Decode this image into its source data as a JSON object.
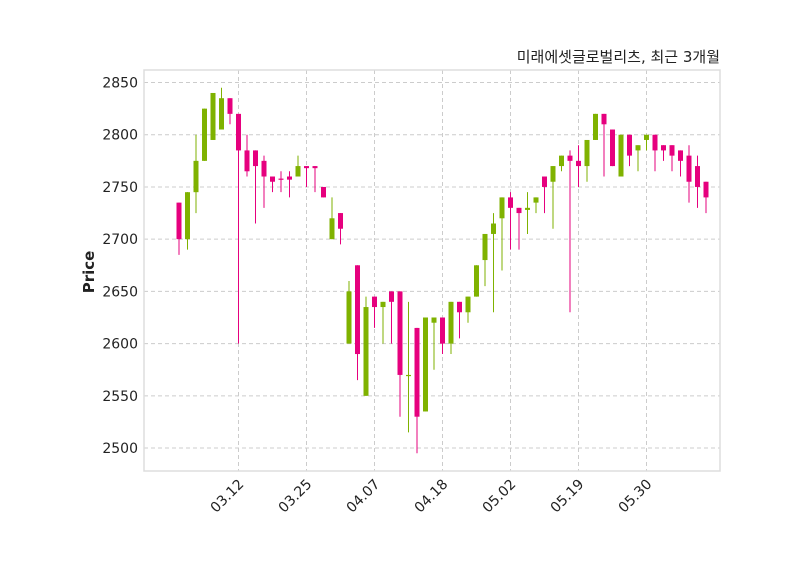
{
  "chart_data": {
    "type": "candlestick",
    "title": "미래에셋글로벌리츠, 최근 3개월",
    "xlabel": "",
    "ylabel": "Price",
    "ylim": [
      2478,
      2862
    ],
    "yticks": [
      2500,
      2550,
      2600,
      2650,
      2700,
      2750,
      2800,
      2850
    ],
    "xtick_labels": [
      "03.12",
      "03.25",
      "04.07",
      "04.18",
      "05.02",
      "05.19",
      "05.30"
    ],
    "xtick_positions": [
      8,
      16,
      24,
      32,
      40,
      48,
      56
    ],
    "grid": true,
    "colors": {
      "up": "#7fb200",
      "down": "#e6007e",
      "grid": "#cccccc",
      "frame": "#dddddd"
    },
    "candles": [
      {
        "date": "",
        "open": 2735,
        "high": 2735,
        "low": 2685,
        "close": 2700
      },
      {
        "date": "",
        "open": 2700,
        "high": 2745,
        "low": 2690,
        "close": 2745
      },
      {
        "date": "",
        "open": 2745,
        "high": 2800,
        "low": 2725,
        "close": 2775
      },
      {
        "date": "",
        "open": 2775,
        "high": 2825,
        "low": 2775,
        "close": 2825
      },
      {
        "date": "",
        "open": 2795,
        "high": 2840,
        "low": 2795,
        "close": 2840
      },
      {
        "date": "",
        "open": 2805,
        "high": 2845,
        "low": 2805,
        "close": 2835
      },
      {
        "date": "",
        "open": 2835,
        "high": 2835,
        "low": 2810,
        "close": 2820
      },
      {
        "date": "03.12",
        "open": 2820,
        "high": 2820,
        "low": 2600,
        "close": 2785
      },
      {
        "date": "",
        "open": 2785,
        "high": 2800,
        "low": 2760,
        "close": 2765
      },
      {
        "date": "",
        "open": 2785,
        "high": 2785,
        "low": 2715,
        "close": 2770
      },
      {
        "date": "",
        "open": 2775,
        "high": 2780,
        "low": 2730,
        "close": 2760
      },
      {
        "date": "",
        "open": 2760,
        "high": 2760,
        "low": 2745,
        "close": 2755
      },
      {
        "date": "",
        "open": 2758,
        "high": 2765,
        "low": 2745,
        "close": 2757
      },
      {
        "date": "",
        "open": 2760,
        "high": 2765,
        "low": 2740,
        "close": 2757
      },
      {
        "date": "",
        "open": 2760,
        "high": 2780,
        "low": 2760,
        "close": 2770
      },
      {
        "date": "",
        "open": 2770,
        "high": 2770,
        "low": 2750,
        "close": 2768
      },
      {
        "date": "03.25",
        "open": 2770,
        "high": 2770,
        "low": 2745,
        "close": 2768
      },
      {
        "date": "",
        "open": 2750,
        "high": 2750,
        "low": 2740,
        "close": 2740
      },
      {
        "date": "",
        "open": 2700,
        "high": 2740,
        "low": 2700,
        "close": 2720
      },
      {
        "date": "",
        "open": 2725,
        "high": 2725,
        "low": 2695,
        "close": 2710
      },
      {
        "date": "",
        "open": 2600,
        "high": 2660,
        "low": 2600,
        "close": 2650
      },
      {
        "date": "",
        "open": 2675,
        "high": 2675,
        "low": 2565,
        "close": 2590
      },
      {
        "date": "",
        "open": 2550,
        "high": 2645,
        "low": 2550,
        "close": 2635
      },
      {
        "date": "",
        "open": 2645,
        "high": 2645,
        "low": 2615,
        "close": 2635
      },
      {
        "date": "04.07",
        "open": 2635,
        "high": 2640,
        "low": 2600,
        "close": 2640
      },
      {
        "date": "",
        "open": 2650,
        "high": 2650,
        "low": 2600,
        "close": 2640
      },
      {
        "date": "",
        "open": 2650,
        "high": 2650,
        "low": 2530,
        "close": 2570
      },
      {
        "date": "",
        "open": 2570,
        "high": 2640,
        "low": 2515,
        "close": 2570
      },
      {
        "date": "",
        "open": 2615,
        "high": 2615,
        "low": 2495,
        "close": 2530
      },
      {
        "date": "",
        "open": 2535,
        "high": 2625,
        "low": 2535,
        "close": 2625
      },
      {
        "date": "",
        "open": 2620,
        "high": 2625,
        "low": 2575,
        "close": 2625
      },
      {
        "date": "",
        "open": 2625,
        "high": 2625,
        "low": 2590,
        "close": 2600
      },
      {
        "date": "04.18",
        "open": 2600,
        "high": 2640,
        "low": 2590,
        "close": 2640
      },
      {
        "date": "",
        "open": 2640,
        "high": 2640,
        "low": 2605,
        "close": 2630
      },
      {
        "date": "",
        "open": 2630,
        "high": 2645,
        "low": 2620,
        "close": 2645
      },
      {
        "date": "",
        "open": 2645,
        "high": 2675,
        "low": 2645,
        "close": 2675
      },
      {
        "date": "",
        "open": 2680,
        "high": 2705,
        "low": 2655,
        "close": 2705
      },
      {
        "date": "",
        "open": 2705,
        "high": 2725,
        "low": 2630,
        "close": 2715
      },
      {
        "date": "",
        "open": 2720,
        "high": 2740,
        "low": 2670,
        "close": 2740
      },
      {
        "date": "",
        "open": 2740,
        "high": 2745,
        "low": 2690,
        "close": 2730
      },
      {
        "date": "05.02",
        "open": 2730,
        "high": 2730,
        "low": 2690,
        "close": 2725
      },
      {
        "date": "",
        "open": 2728,
        "high": 2745,
        "low": 2705,
        "close": 2730
      },
      {
        "date": "",
        "open": 2735,
        "high": 2740,
        "low": 2725,
        "close": 2740
      },
      {
        "date": "",
        "open": 2760,
        "high": 2760,
        "low": 2725,
        "close": 2750
      },
      {
        "date": "",
        "open": 2755,
        "high": 2770,
        "low": 2710,
        "close": 2770
      },
      {
        "date": "",
        "open": 2770,
        "high": 2780,
        "low": 2765,
        "close": 2780
      },
      {
        "date": "",
        "open": 2780,
        "high": 2785,
        "low": 2630,
        "close": 2775
      },
      {
        "date": "",
        "open": 2775,
        "high": 2790,
        "low": 2750,
        "close": 2770
      },
      {
        "date": "05.19",
        "open": 2770,
        "high": 2795,
        "low": 2755,
        "close": 2795
      },
      {
        "date": "",
        "open": 2795,
        "high": 2820,
        "low": 2795,
        "close": 2820
      },
      {
        "date": "",
        "open": 2820,
        "high": 2820,
        "low": 2760,
        "close": 2810
      },
      {
        "date": "",
        "open": 2805,
        "high": 2805,
        "low": 2770,
        "close": 2770
      },
      {
        "date": "",
        "open": 2760,
        "high": 2800,
        "low": 2760,
        "close": 2800
      },
      {
        "date": "",
        "open": 2800,
        "high": 2800,
        "low": 2770,
        "close": 2780
      },
      {
        "date": "",
        "open": 2785,
        "high": 2790,
        "low": 2765,
        "close": 2790
      },
      {
        "date": "",
        "open": 2795,
        "high": 2800,
        "low": 2785,
        "close": 2800
      },
      {
        "date": "05.30",
        "open": 2800,
        "high": 2800,
        "low": 2765,
        "close": 2785
      },
      {
        "date": "",
        "open": 2790,
        "high": 2790,
        "low": 2775,
        "close": 2785
      },
      {
        "date": "",
        "open": 2790,
        "high": 2790,
        "low": 2765,
        "close": 2780
      },
      {
        "date": "",
        "open": 2785,
        "high": 2785,
        "low": 2760,
        "close": 2775
      },
      {
        "date": "",
        "open": 2780,
        "high": 2790,
        "low": 2735,
        "close": 2755
      },
      {
        "date": "",
        "open": 2770,
        "high": 2780,
        "low": 2730,
        "close": 2750
      },
      {
        "date": "",
        "open": 2755,
        "high": 2755,
        "low": 2725,
        "close": 2740
      }
    ]
  }
}
